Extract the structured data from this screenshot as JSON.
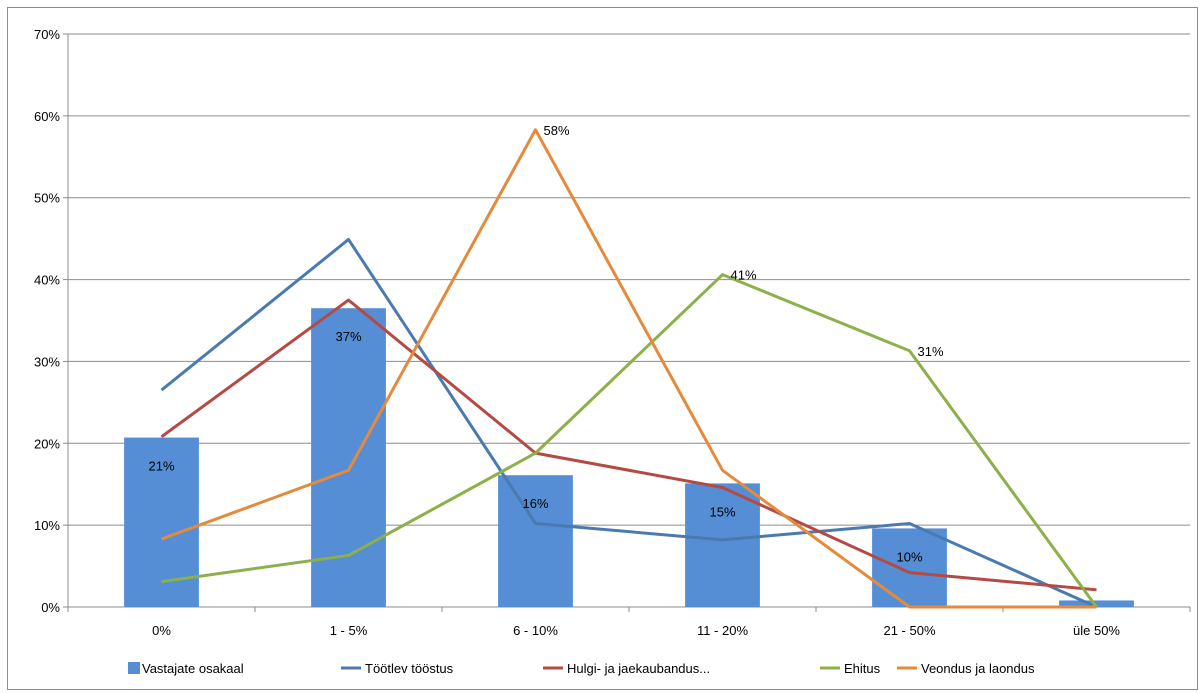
{
  "chart_data": {
    "type": "bar",
    "categories": [
      "0%",
      "1 - 5%",
      "6 - 10%",
      "11 - 20%",
      "21 - 50%",
      "üle 50%"
    ],
    "ylim": [
      0,
      0.7
    ],
    "yticks": [
      0,
      0.1,
      0.2,
      0.3,
      0.4,
      0.5,
      0.6,
      0.7
    ],
    "ytick_labels": [
      "0%",
      "10%",
      "20%",
      "30%",
      "40%",
      "50%",
      "60%",
      "70%"
    ],
    "grid": "horizontal",
    "legend_position": "bottom",
    "series": [
      {
        "name": "Vastajate osakaal",
        "kind": "bar",
        "color": "#558ed5",
        "values": [
          0.207,
          0.365,
          0.161,
          0.151,
          0.096,
          0.008
        ],
        "data_labels": [
          "21%",
          "37%",
          "16%",
          "15%",
          "10%",
          ""
        ]
      },
      {
        "name": "Töötlev tööstus",
        "kind": "line",
        "color": "#4a7ab0",
        "values": [
          0.265,
          0.449,
          0.102,
          0.082,
          0.102,
          0.0
        ]
      },
      {
        "name": "Hulgi- ja jaekaubandus...",
        "kind": "line",
        "color": "#b54a45",
        "values": [
          0.208,
          0.375,
          0.188,
          0.146,
          0.042,
          0.021
        ]
      },
      {
        "name": "Ehitus",
        "kind": "line",
        "color": "#8cb04a",
        "values": [
          0.031,
          0.063,
          0.188,
          0.406,
          0.313,
          0.0
        ],
        "data_labels": [
          "",
          "",
          "",
          "41%",
          "31%",
          ""
        ]
      },
      {
        "name": "Veondus ja laondus",
        "kind": "line",
        "color": "#e58a3c",
        "values": [
          0.083,
          0.167,
          0.583,
          0.167,
          0.0,
          0.0
        ],
        "data_labels": [
          "",
          "",
          "58%",
          "",
          "",
          ""
        ]
      }
    ]
  }
}
